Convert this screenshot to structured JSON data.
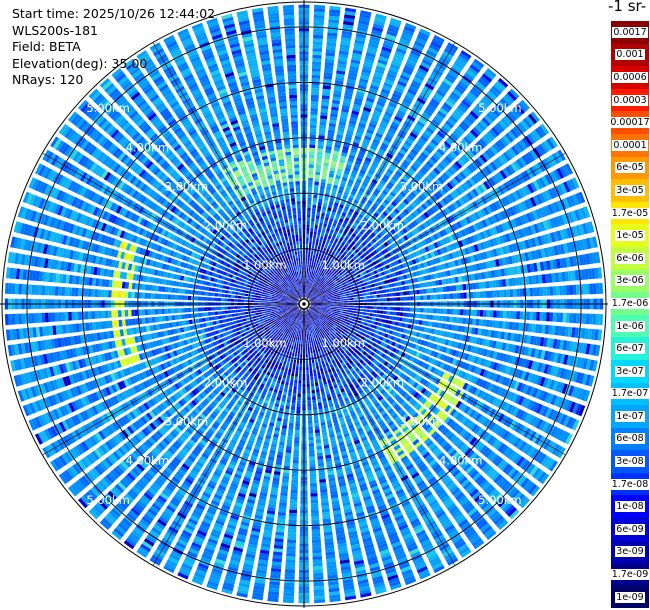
{
  "header": {
    "start_time": "Start time: 2025/10/26 12:44:02",
    "instrument": "WLS200s-181",
    "field": "Field: BETA",
    "elevation": "Elevation(deg): 35.00",
    "nrays": "NRays: 120"
  },
  "colorbar": {
    "title": "-1 sr-",
    "labels": [
      "0.0017",
      "0.001",
      "0.0006",
      "0.0003",
      "0.00017",
      "0.0001",
      "6e-05",
      "3e-05",
      "1.7e-05",
      "1e-05",
      "6e-06",
      "3e-06",
      "1.7e-06",
      "1e-06",
      "6e-07",
      "3e-07",
      "1.7e-07",
      "1e-07",
      "6e-08",
      "3e-08",
      "1.7e-08",
      "1e-08",
      "6e-09",
      "3e-09",
      "1.7e-09",
      "1e-09"
    ],
    "colors": [
      "#8b0000",
      "#b30000",
      "#d90000",
      "#ff1a00",
      "#ff4d00",
      "#ff7300",
      "#ff9900",
      "#ffbf00",
      "#ffe600",
      "#e6ff1a",
      "#bfff40",
      "#99ff66",
      "#73ff8c",
      "#4dffb3",
      "#26f2d9",
      "#00d9ff",
      "#00bfff",
      "#00a6ff",
      "#0080ff",
      "#0059ff",
      "#0033ff",
      "#0000ff",
      "#0000d9",
      "#0000b3",
      "#00008c",
      "#000066"
    ]
  },
  "chart_data": {
    "type": "ppi_polar",
    "field": "BETA",
    "elevation_deg": 35.0,
    "n_rays": 120,
    "range_rings_km": [
      1,
      2,
      3,
      4,
      5
    ],
    "ring_labels": [
      "1.00km",
      "2.00km",
      "3.00km",
      "4.00km",
      "5.00km"
    ],
    "max_range_km": 5.45,
    "color_scale": "log",
    "value_range": [
      1e-09,
      0.0017
    ],
    "features": [
      {
        "description": "enhanced backscatter arc",
        "range_km": [
          3.1,
          3.5
        ],
        "azimuth_deg": [
          250,
          290
        ],
        "level": 1.7e-06
      },
      {
        "description": "enhanced backscatter arc",
        "range_km": [
          2.8,
          3.3
        ],
        "azimuth_deg": [
          115,
          150
        ],
        "level": 1e-06
      },
      {
        "description": "enhanced backscatter arc",
        "range_km": [
          2.2,
          2.8
        ],
        "azimuth_deg": [
          330,
          15
        ],
        "level": 3e-07
      }
    ]
  }
}
